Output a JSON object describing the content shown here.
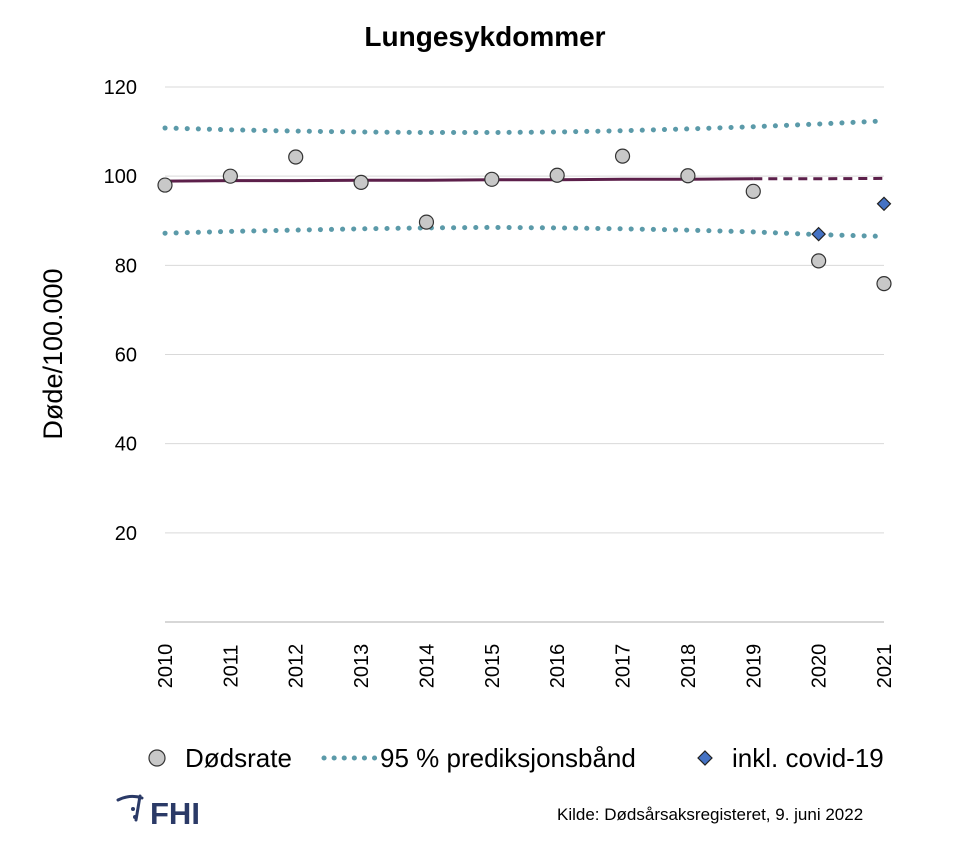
{
  "chart_data": {
    "type": "scatter",
    "title": "Lungesykdommer",
    "ylabel": "Døde/100.000",
    "xlabel": "",
    "ylim": [
      0,
      120
    ],
    "yticks": [
      20,
      40,
      60,
      80,
      100,
      120
    ],
    "x": [
      "2010",
      "2011",
      "2012",
      "2013",
      "2014",
      "2015",
      "2016",
      "2017",
      "2018",
      "2019",
      "2020",
      "2021"
    ],
    "grid": "horizontal",
    "legend_position": "bottom",
    "series": [
      {
        "name": "Dødsrate",
        "marker": "circle",
        "color": "#c8c8c8",
        "values": [
          98,
          100,
          104.3,
          98.6,
          89.7,
          99.3,
          100.2,
          104.5,
          100.1,
          96.6,
          81,
          75.9
        ]
      },
      {
        "name": "95 % prediksjonsbånd",
        "style": "dotted",
        "color": "#5b9aa9",
        "role": "upper",
        "values": [
          110.8,
          110.4,
          110.1,
          109.9,
          109.8,
          109.8,
          109.9,
          110.2,
          110.6,
          111.1,
          111.7,
          112.4
        ]
      },
      {
        "role": "lower",
        "style": "dotted",
        "color": "#5b9aa9",
        "values": [
          87.2,
          87.6,
          87.9,
          88.2,
          88.4,
          88.5,
          88.4,
          88.2,
          87.9,
          87.5,
          86.9,
          86.5
        ]
      },
      {
        "role": "trend",
        "style": "solid-then-dashed",
        "color": "#5c1f4a",
        "dashed_from": "2019",
        "values": [
          98.9,
          99,
          99,
          99.1,
          99.1,
          99.2,
          99.2,
          99.3,
          99.3,
          99.4,
          99.4,
          99.5
        ]
      },
      {
        "name": "inkl. covid-19",
        "marker": "diamond",
        "color": "#4472c4",
        "x": [
          "2020",
          "2021"
        ],
        "values": [
          87,
          93.8
        ]
      }
    ]
  },
  "legend": {
    "items": [
      "Dødsrate",
      "95 % prediksjonsbånd",
      "inkl. covid-19"
    ]
  },
  "logo": {
    "text": "FHI"
  },
  "source": "Kilde: Dødsårsaksregisteret, 9. juni 2022",
  "colors": {
    "trend": "#5c1f4a",
    "band": "#5b9aa9",
    "point": "#c8c8c8",
    "covid": "#4472c4",
    "logo": "#2b3a67"
  }
}
